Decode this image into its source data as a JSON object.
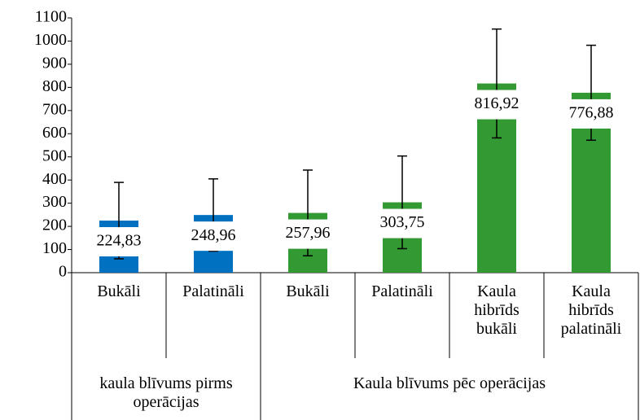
{
  "chart_data": {
    "type": "bar",
    "ylim": [
      0,
      1100
    ],
    "yticks": [
      0,
      100,
      200,
      300,
      400,
      500,
      600,
      700,
      800,
      900,
      1000,
      1100
    ],
    "groups": [
      {
        "name": "kaula blīvums pirms operācijas",
        "color": "#0070c0",
        "categories": [
          "Bukāli",
          "Palatināli"
        ],
        "values": [
          224.83,
          248.96
        ],
        "value_labels": [
          "224,83",
          "248,96"
        ],
        "errors": [
          165,
          156
        ]
      },
      {
        "name": "Kaula blīvums pēc operācijas",
        "color": "#339933",
        "categories": [
          "Bukāli",
          "Palatināli",
          "Kaula hibrīds bukāli",
          "Kaula hibrīds palatināli"
        ],
        "values": [
          257.96,
          303.75,
          816.92,
          776.88
        ],
        "value_labels": [
          "257,96",
          "303,75",
          "816,92",
          "776,88"
        ],
        "errors": [
          185,
          200,
          235,
          205
        ]
      }
    ]
  }
}
